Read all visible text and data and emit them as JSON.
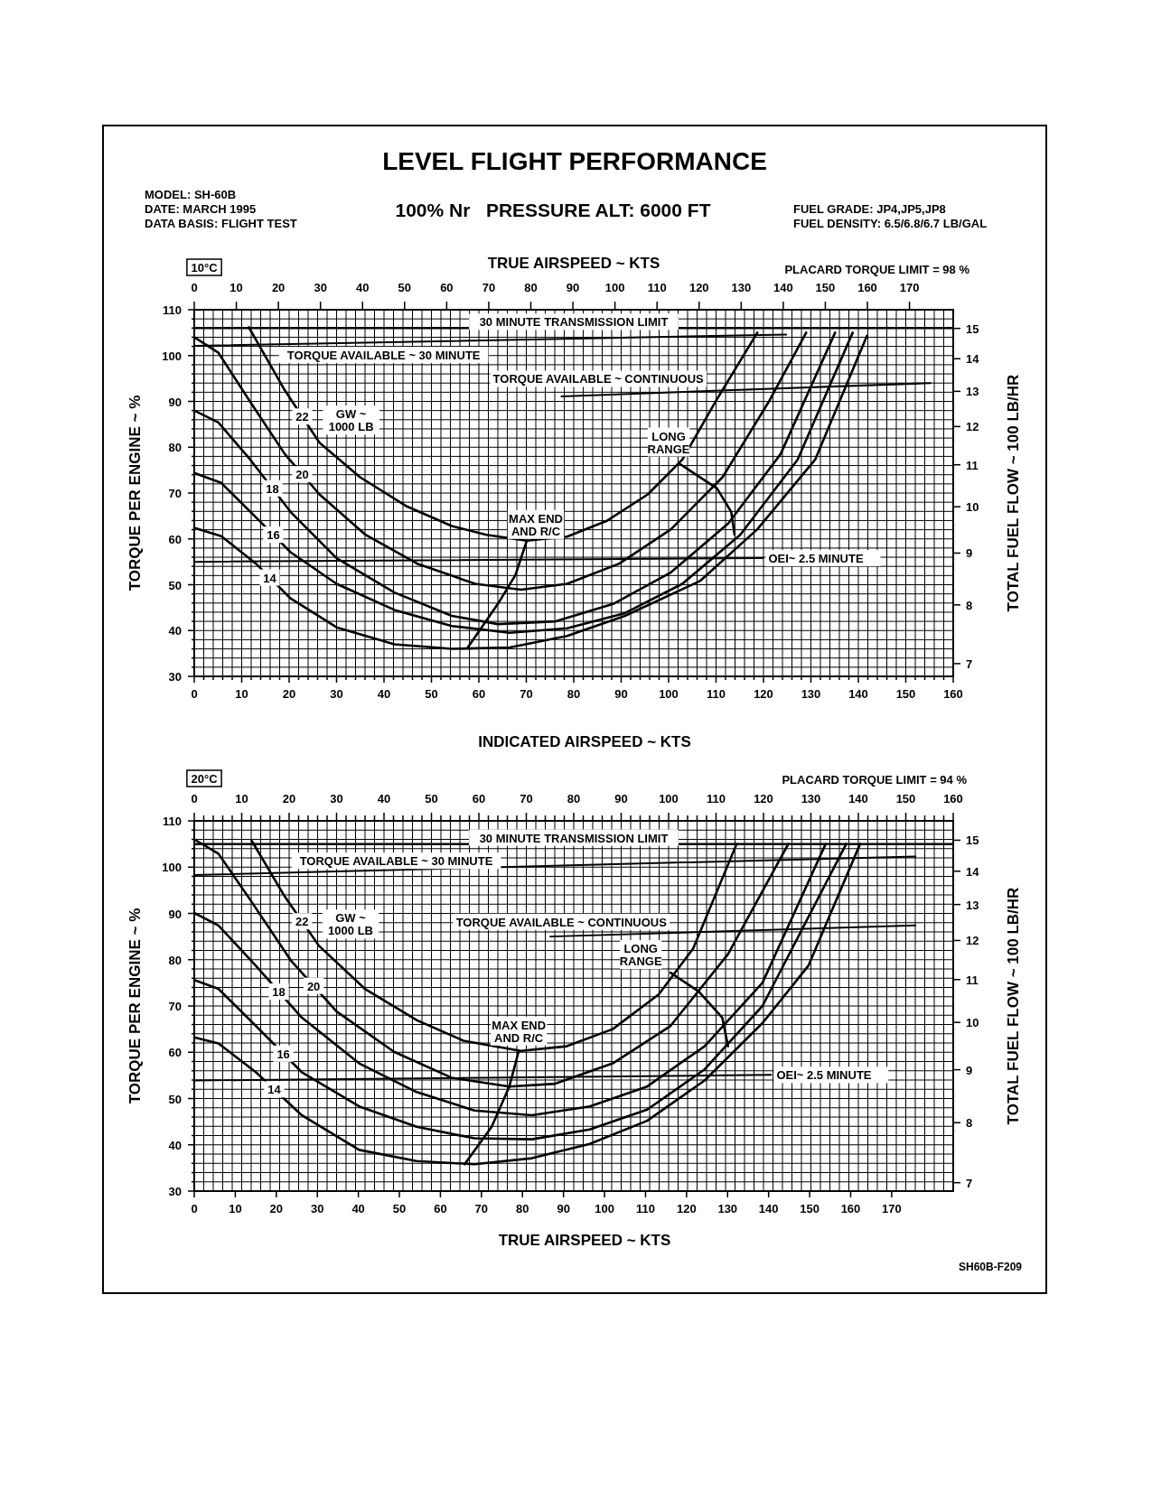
{
  "chart_data": [
    {
      "type": "line",
      "title": "LEVEL FLIGHT PERFORMANCE",
      "subtitle": "100% Nr   PRESSURE ALT: 6000 FT",
      "xlabel": "INDICATED AIRSPEED ~ KTS",
      "x2label": "TRUE AIRSPEED ~ KTS",
      "ylabel": "TORQUE PER ENGINE ~ %",
      "y2label": "TOTAL FUEL FLOW ~ 100 LB/HR",
      "annotations": [
        "MODEL: SH-60B",
        "DATE: MARCH 1995",
        "DATA BASIS: FLIGHT TEST",
        "FUEL GRADE: JP4,JP5,JP8",
        "FUEL DENSITY: 6.5/6.8/6.7 LB/GAL",
        "10°C",
        "PLACARD TORQUE LIMIT = 98 %",
        "GW ~ 1000 LB"
      ],
      "xlim": [
        0,
        160
      ],
      "x2lim": [
        0,
        180.4
      ],
      "ylim": [
        30,
        110
      ],
      "y2lim": [
        6.8,
        15.65
      ],
      "log": "y2",
      "grid": true,
      "legend": false,
      "line_style": "solid",
      "marker": "none",
      "xticks": [
        0,
        {
          "value": 2,
          "label": null
        },
        {
          "value": 4,
          "label": null
        },
        {
          "value": 6,
          "label": null
        },
        {
          "value": 8,
          "label": null
        },
        10,
        {
          "value": 12,
          "label": null
        },
        {
          "value": 14,
          "label": null
        },
        {
          "value": 16,
          "label": null
        },
        {
          "value": 18,
          "label": null
        },
        20,
        {
          "value": 22,
          "label": null
        },
        {
          "value": 24,
          "label": null
        },
        {
          "value": 26,
          "label": null
        },
        {
          "value": 28,
          "label": null
        },
        30,
        {
          "value": 32,
          "label": null
        },
        {
          "value": 34,
          "label": null
        },
        {
          "value": 36,
          "label": null
        },
        {
          "value": 38,
          "label": null
        },
        40,
        {
          "value": 42,
          "label": null
        },
        {
          "value": 44,
          "label": null
        },
        {
          "value": 46,
          "label": null
        },
        {
          "value": 48,
          "label": null
        },
        50,
        {
          "value": 52,
          "label": null
        },
        {
          "value": 54,
          "label": null
        },
        {
          "value": 56,
          "label": null
        },
        {
          "value": 58,
          "label": null
        },
        60,
        {
          "value": 62,
          "label": null
        },
        {
          "value": 64,
          "label": null
        },
        {
          "value": 66,
          "label": null
        },
        {
          "value": 68,
          "label": null
        },
        70,
        {
          "value": 72,
          "label": null
        },
        {
          "value": 74,
          "label": null
        },
        {
          "value": 76,
          "label": null
        },
        {
          "value": 78,
          "label": null
        },
        80,
        {
          "value": 82,
          "label": null
        },
        {
          "value": 84,
          "label": null
        },
        {
          "value": 86,
          "label": null
        },
        {
          "value": 88,
          "label": null
        },
        90,
        {
          "value": 92,
          "label": null
        },
        {
          "value": 94,
          "label": null
        },
        {
          "value": 96,
          "label": null
        },
        {
          "value": 98,
          "label": null
        },
        100,
        {
          "value": 102,
          "label": null
        },
        {
          "value": 104,
          "label": null
        },
        {
          "value": 106,
          "label": null
        },
        {
          "value": 108,
          "label": null
        },
        110,
        {
          "value": 112,
          "label": null
        },
        {
          "value": 114,
          "label": null
        },
        {
          "value": 116,
          "label": null
        },
        {
          "value": 118,
          "label": null
        },
        120,
        {
          "value": 122,
          "label": null
        },
        {
          "value": 124,
          "label": null
        },
        {
          "value": 126,
          "label": null
        },
        {
          "value": 128,
          "label": null
        },
        130,
        {
          "value": 132,
          "label": null
        },
        {
          "value": 134,
          "label": null
        },
        {
          "value": 136,
          "label": null
        },
        {
          "value": 138,
          "label": null
        },
        140,
        {
          "value": 142,
          "label": null
        },
        {
          "value": 144,
          "label": null
        },
        {
          "value": 146,
          "label": null
        },
        {
          "value": 148,
          "label": null
        },
        150,
        {
          "value": 152,
          "label": null
        },
        {
          "value": 154,
          "label": null
        },
        {
          "value": 156,
          "label": null
        },
        {
          "value": 158,
          "label": null
        },
        160
      ],
      "x2ticks": [
        0,
        10,
        20,
        30,
        40,
        50,
        60,
        70,
        80,
        90,
        100,
        110,
        120,
        130,
        140,
        150,
        160,
        170
      ],
      "yticks": [
        30,
        {
          "value": 32,
          "label": null
        },
        {
          "value": 34,
          "label": null
        },
        {
          "value": 36,
          "label": null
        },
        {
          "value": 38,
          "label": null
        },
        40,
        {
          "value": 42,
          "label": null
        },
        {
          "value": 44,
          "label": null
        },
        {
          "value": 46,
          "label": null
        },
        {
          "value": 48,
          "label": null
        },
        50,
        {
          "value": 52,
          "label": null
        },
        {
          "value": 54,
          "label": null
        },
        {
          "value": 56,
          "label": null
        },
        {
          "value": 58,
          "label": null
        },
        60,
        {
          "value": 62,
          "label": null
        },
        {
          "value": 64,
          "label": null
        },
        {
          "value": 66,
          "label": null
        },
        {
          "value": 68,
          "label": null
        },
        70,
        {
          "value": 72,
          "label": null
        },
        {
          "value": 74,
          "label": null
        },
        {
          "value": 76,
          "label": null
        },
        {
          "value": 78,
          "label": null
        },
        80,
        {
          "value": 82,
          "label": null
        },
        {
          "value": 84,
          "label": null
        },
        {
          "value": 86,
          "label": null
        },
        {
          "value": 88,
          "label": null
        },
        90,
        {
          "value": 92,
          "label": null
        },
        {
          "value": 94,
          "label": null
        },
        {
          "value": 96,
          "label": null
        },
        {
          "value": 98,
          "label": null
        },
        100,
        {
          "value": 102,
          "label": null
        },
        {
          "value": 104,
          "label": null
        },
        {
          "value": 106,
          "label": null
        },
        {
          "value": 108,
          "label": null
        },
        110
      ],
      "y2ticks": [
        7,
        8,
        9,
        10,
        11,
        12,
        13,
        14,
        15
      ],
      "ref_lines": [
        {
          "axis": "y",
          "value": 106,
          "label": "30 MINUTE TRANSMISSION LIMIT",
          "color": "#000000"
        }
      ],
      "series": [
        {
          "name": "TORQUE AVAILABLE ~ 30 MINUTE",
          "color": "#000000",
          "x": [
            0,
            124.8
          ],
          "values": [
            102.1,
            104.6
          ]
        },
        {
          "name": "TORQUE AVAILABLE ~ CONTINUOUS",
          "color": "#000000",
          "x": [
            77.4,
            155.2
          ],
          "values": [
            91.1,
            94
          ]
        },
        {
          "name": "OEI~ 2.5 MINUTE",
          "color": "#000000",
          "x": [
            0,
            119.9
          ],
          "values": [
            55,
            55.8
          ]
        },
        {
          "name": "22",
          "color": "#000000",
          "x": [
            11.5,
            19.1,
            26.4,
            34.9,
            44.6,
            54.3,
            61.6,
            70.1,
            78.6,
            87.1,
            95.6,
            102.9,
            110.2,
            118.7
          ],
          "values": [
            106.2,
            92.4,
            81,
            73.5,
            67.2,
            62.8,
            60.9,
            59.6,
            60.5,
            64,
            69.7,
            77.3,
            90.5,
            105
          ]
        },
        {
          "name": "20",
          "color": "#000000",
          "x": [
            0,
            5.1,
            11.8,
            19.1,
            26.4,
            36.1,
            47,
            59.2,
            68.9,
            78.6,
            89.6,
            100.5,
            111.4,
            121.1,
            129
          ],
          "values": [
            104,
            100.6,
            89.9,
            78.5,
            69.7,
            60.9,
            54.6,
            50.2,
            48.9,
            50.2,
            54.6,
            62.1,
            73.5,
            89.9,
            105
          ]
        },
        {
          "name": "18",
          "color": "#000000",
          "x": [
            0,
            5.1,
            11.8,
            20.3,
            30,
            42.2,
            54.3,
            64,
            76.2,
            88.3,
            100.5,
            112.6,
            123.6,
            135.1
          ],
          "values": [
            88,
            85.4,
            77.3,
            65.9,
            55.8,
            48.3,
            43.2,
            41.4,
            42,
            45.8,
            52.7,
            63.4,
            78.5,
            105
          ]
        },
        {
          "name": "16",
          "color": "#000000",
          "x": [
            0,
            5.7,
            13,
            20.3,
            30,
            42.2,
            54.3,
            66.5,
            78.6,
            90.8,
            102.9,
            115.1,
            127.2,
            138.8
          ],
          "values": [
            74.4,
            72.2,
            64.7,
            57.1,
            50.2,
            44.5,
            41,
            39.5,
            40.5,
            43.8,
            50.2,
            60.9,
            77.3,
            105
          ]
        },
        {
          "name": "14",
          "color": "#000000",
          "x": [
            0,
            5.7,
            13,
            20.3,
            30,
            42.2,
            54.3,
            66.5,
            78.6,
            90.8,
            106.6,
            118.7,
            130.9,
            141.8
          ],
          "values": [
            62.4,
            60.6,
            54.6,
            47,
            40.7,
            37,
            36,
            36.3,
            38.8,
            43.2,
            50.8,
            62.1,
            77.3,
            104.3
          ]
        },
        {
          "name": "MAX END AND R/C",
          "color": "#000000",
          "x": [
            57.6,
            64,
            67.7,
            70.1
          ],
          "values": [
            36.2,
            45.8,
            52.1,
            59.6
          ]
        },
        {
          "name": "LONG RANGE",
          "color": "#000000",
          "x": [
            102.3,
            110.2,
            113.2,
            113.9
          ],
          "values": [
            76.4,
            71,
            65.9,
            60.9
          ]
        }
      ]
    },
    {
      "type": "line",
      "xlabel": "TRUE AIRSPEED ~ KTS",
      "ylabel": "TORQUE PER ENGINE ~ %",
      "y2label": "TOTAL FUEL FLOW ~ 100 LB/HR",
      "annotations": [
        "20°C",
        "PLACARD TORQUE LIMIT = 94 %",
        "GW ~ 1000 LB",
        "SH60B-F209"
      ],
      "xlim": [
        0,
        185
      ],
      "x2lim": [
        0,
        160
      ],
      "ylim": [
        30,
        110
      ],
      "y2lim": [
        6.87,
        15.66
      ],
      "log": "y2",
      "grid": true,
      "legend": false,
      "line_style": "solid",
      "marker": "none",
      "xticks": [
        0,
        10,
        20,
        30,
        40,
        50,
        60,
        70,
        80,
        90,
        100,
        110,
        120,
        130,
        140,
        150,
        160,
        170
      ],
      "x2ticks": [
        0,
        {
          "value": 2,
          "label": null
        },
        {
          "value": 4,
          "label": null
        },
        {
          "value": 6,
          "label": null
        },
        {
          "value": 8,
          "label": null
        },
        10,
        {
          "value": 12,
          "label": null
        },
        {
          "value": 14,
          "label": null
        },
        {
          "value": 16,
          "label": null
        },
        {
          "value": 18,
          "label": null
        },
        20,
        {
          "value": 22,
          "label": null
        },
        {
          "value": 24,
          "label": null
        },
        {
          "value": 26,
          "label": null
        },
        {
          "value": 28,
          "label": null
        },
        30,
        {
          "value": 32,
          "label": null
        },
        {
          "value": 34,
          "label": null
        },
        {
          "value": 36,
          "label": null
        },
        {
          "value": 38,
          "label": null
        },
        40,
        {
          "value": 42,
          "label": null
        },
        {
          "value": 44,
          "label": null
        },
        {
          "value": 46,
          "label": null
        },
        {
          "value": 48,
          "label": null
        },
        50,
        {
          "value": 52,
          "label": null
        },
        {
          "value": 54,
          "label": null
        },
        {
          "value": 56,
          "label": null
        },
        {
          "value": 58,
          "label": null
        },
        60,
        {
          "value": 62,
          "label": null
        },
        {
          "value": 64,
          "label": null
        },
        {
          "value": 66,
          "label": null
        },
        {
          "value": 68,
          "label": null
        },
        70,
        {
          "value": 72,
          "label": null
        },
        {
          "value": 74,
          "label": null
        },
        {
          "value": 76,
          "label": null
        },
        {
          "value": 78,
          "label": null
        },
        80,
        {
          "value": 82,
          "label": null
        },
        {
          "value": 84,
          "label": null
        },
        {
          "value": 86,
          "label": null
        },
        {
          "value": 88,
          "label": null
        },
        90,
        {
          "value": 92,
          "label": null
        },
        {
          "value": 94,
          "label": null
        },
        {
          "value": 96,
          "label": null
        },
        {
          "value": 98,
          "label": null
        },
        100,
        {
          "value": 102,
          "label": null
        },
        {
          "value": 104,
          "label": null
        },
        {
          "value": 106,
          "label": null
        },
        {
          "value": 108,
          "label": null
        },
        110,
        {
          "value": 112,
          "label": null
        },
        {
          "value": 114,
          "label": null
        },
        {
          "value": 116,
          "label": null
        },
        {
          "value": 118,
          "label": null
        },
        120,
        {
          "value": 122,
          "label": null
        },
        {
          "value": 124,
          "label": null
        },
        {
          "value": 126,
          "label": null
        },
        {
          "value": 128,
          "label": null
        },
        130,
        {
          "value": 132,
          "label": null
        },
        {
          "value": 134,
          "label": null
        },
        {
          "value": 136,
          "label": null
        },
        {
          "value": 138,
          "label": null
        },
        140,
        {
          "value": 142,
          "label": null
        },
        {
          "value": 144,
          "label": null
        },
        {
          "value": 146,
          "label": null
        },
        {
          "value": 148,
          "label": null
        },
        150,
        {
          "value": 152,
          "label": null
        },
        {
          "value": 154,
          "label": null
        },
        {
          "value": 156,
          "label": null
        },
        {
          "value": 158,
          "label": null
        },
        160
      ],
      "yticks": [
        30,
        {
          "value": 32,
          "label": null
        },
        {
          "value": 34,
          "label": null
        },
        {
          "value": 36,
          "label": null
        },
        {
          "value": 38,
          "label": null
        },
        40,
        {
          "value": 42,
          "label": null
        },
        {
          "value": 44,
          "label": null
        },
        {
          "value": 46,
          "label": null
        },
        {
          "value": 48,
          "label": null
        },
        50,
        {
          "value": 52,
          "label": null
        },
        {
          "value": 54,
          "label": null
        },
        {
          "value": 56,
          "label": null
        },
        {
          "value": 58,
          "label": null
        },
        60,
        {
          "value": 62,
          "label": null
        },
        {
          "value": 64,
          "label": null
        },
        {
          "value": 66,
          "label": null
        },
        {
          "value": 68,
          "label": null
        },
        70,
        {
          "value": 72,
          "label": null
        },
        {
          "value": 74,
          "label": null
        },
        {
          "value": 76,
          "label": null
        },
        {
          "value": 78,
          "label": null
        },
        80,
        {
          "value": 82,
          "label": null
        },
        {
          "value": 84,
          "label": null
        },
        {
          "value": 86,
          "label": null
        },
        {
          "value": 88,
          "label": null
        },
        90,
        {
          "value": 92,
          "label": null
        },
        {
          "value": 94,
          "label": null
        },
        {
          "value": 96,
          "label": null
        },
        {
          "value": 98,
          "label": null
        },
        100,
        {
          "value": 102,
          "label": null
        },
        {
          "value": 104,
          "label": null
        },
        {
          "value": 106,
          "label": null
        },
        {
          "value": 108,
          "label": null
        },
        110
      ],
      "y2ticks": [
        7,
        8,
        9,
        10,
        11,
        12,
        13,
        14,
        15
      ],
      "ref_lines": [
        {
          "axis": "y",
          "value": 105,
          "label": "30 MINUTE TRANSMISSION LIMIT",
          "color": "#000000"
        }
      ],
      "series": [
        {
          "name": "TORQUE AVAILABLE ~ 30 MINUTE",
          "color": "#000000",
          "x": [
            0,
            175.8
          ],
          "values": [
            98.3,
            102.3
          ]
        },
        {
          "name": "TORQUE AVAILABLE ~ CONTINUOUS",
          "color": "#000000",
          "x": [
            86.8,
            175.8
          ],
          "values": [
            85,
            87.4
          ]
        },
        {
          "name": "OEI~ 2.5 MINUTE",
          "color": "#000000",
          "x": [
            0,
            140.6
          ],
          "values": [
            53.9,
            55.1
          ]
        },
        {
          "name": "22",
          "color": "#000000",
          "x": [
            14,
            22.1,
            30.4,
            41.6,
            54.3,
            65.6,
            79.6,
            90.8,
            102,
            113.2,
            121.6,
            132.2
          ],
          "values": [
            105.7,
            93.6,
            83,
            73.7,
            66.9,
            62.5,
            60.3,
            61.3,
            65,
            72.5,
            82.4,
            105
          ]
        },
        {
          "name": "20",
          "color": "#000000",
          "x": [
            0,
            5.9,
            13.6,
            23.5,
            34.7,
            48.7,
            62.7,
            76.8,
            88,
            102,
            116.1,
            130.1,
            144.8
          ],
          "values": [
            106,
            102.9,
            93,
            79.9,
            68.8,
            60.1,
            54.5,
            52.6,
            53.2,
            57.6,
            65.7,
            81.2,
            105
          ]
        },
        {
          "name": "18",
          "color": "#000000",
          "x": [
            0,
            5.9,
            15,
            26.2,
            40.2,
            54.2,
            68.3,
            82.3,
            96.4,
            110.4,
            124.4,
            138.5,
            153.9
          ],
          "values": [
            90.1,
            87.4,
            78.7,
            67.5,
            57.6,
            51.4,
            47.4,
            46.4,
            48.3,
            52.6,
            61.3,
            75,
            105
          ]
        },
        {
          "name": "16",
          "color": "#000000",
          "x": [
            0,
            5.9,
            15,
            26.2,
            40.2,
            54.2,
            68.3,
            82.3,
            96.4,
            110.4,
            124.4,
            138.5,
            158.9
          ],
          "values": [
            75.6,
            73.7,
            65.7,
            55.7,
            48.3,
            43.9,
            41.4,
            41.2,
            43.3,
            47.6,
            56.3,
            70,
            105
          ]
        },
        {
          "name": "14",
          "color": "#000000",
          "x": [
            0,
            5.9,
            15,
            26.2,
            40.2,
            54.2,
            68.3,
            82.3,
            96.4,
            110.4,
            124.4,
            138.5,
            149.7,
            162.3
          ],
          "values": [
            63.2,
            61.9,
            55.7,
            46.4,
            38.9,
            36.5,
            35.8,
            37.1,
            40.2,
            45.2,
            53.9,
            66.3,
            78.7,
            105
          ]
        },
        {
          "name": "MAX END AND R/C",
          "color": "#000000",
          "x": [
            65.9,
            72.5,
            76.8,
            79.1
          ],
          "values": [
            35.8,
            43.9,
            52.6,
            60.3
          ]
        },
        {
          "name": "LONG RANGE",
          "color": "#000000",
          "x": [
            116.1,
            123,
            128.7,
            130.1
          ],
          "values": [
            77.2,
            73.1,
            67.5,
            61.3
          ]
        }
      ]
    }
  ]
}
